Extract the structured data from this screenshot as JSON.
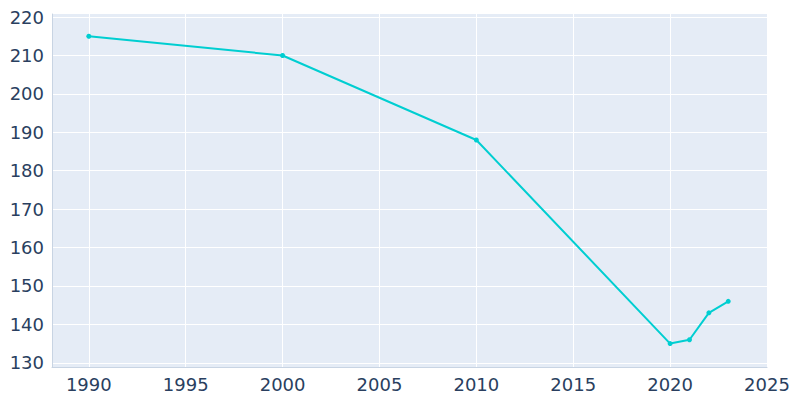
{
  "chart_data": {
    "type": "line",
    "x": [
      1990,
      2000,
      2010,
      2020,
      2021,
      2022,
      2023
    ],
    "values": [
      215,
      210,
      188,
      135,
      136,
      143,
      146
    ],
    "color": "#00ced1",
    "marker": "circle",
    "xlim": [
      1988.1,
      2025
    ],
    "xticks": [
      1990,
      1995,
      2000,
      2005,
      2010,
      2015,
      2020,
      2025
    ],
    "ylim": [
      128.9,
      220.8
    ],
    "yticks": [
      130,
      140,
      150,
      160,
      170,
      180,
      190,
      200,
      210,
      220
    ],
    "grid": true
  }
}
